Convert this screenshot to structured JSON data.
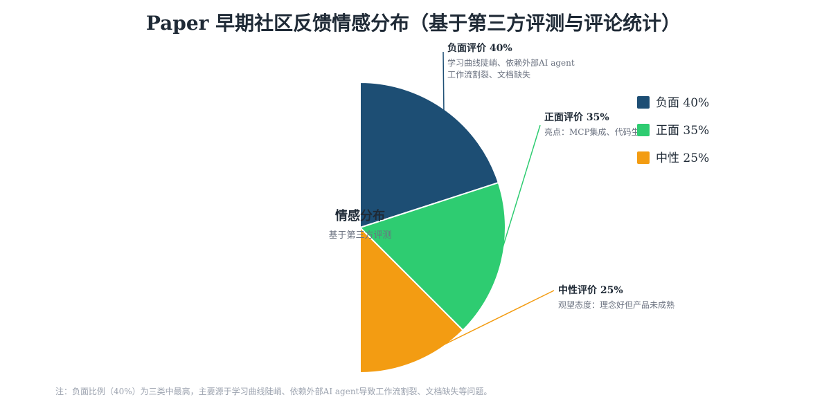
{
  "chart_data": {
    "type": "pie",
    "title": "Paper 早期社区反馈情感分布（基于第三方评测与评论统计）",
    "center_label": {
      "title": "情感分布",
      "subtitle": "基于第三方评测"
    },
    "slices": [
      {
        "name": "负面",
        "value": 40,
        "legend": "负面 40%",
        "callout_title": "负面评价 40%",
        "callout_lines": [
          "学习曲线陡峭、依赖外部AI agent",
          "工作流割裂、文档缺失"
        ],
        "color": "#1d4e74"
      },
      {
        "name": "正面",
        "value": 35,
        "legend": "正面 35%",
        "callout_title": "正面评价 35%",
        "callout_lines": [
          "亮点：MCP集成、代码生成"
        ],
        "color": "#2ecc71"
      },
      {
        "name": "中性",
        "value": 25,
        "legend": "中性 25%",
        "callout_title": "中性评价 25%",
        "callout_lines": [
          "观望态度：理念好但产品未成熟"
        ],
        "color": "#f39c12"
      }
    ],
    "legend_position": "top-right",
    "footnote": "注：负面比例（40%）为三类中最高，主要源于学习曲线陡峭、依赖外部AI agent导致工作流割裂、文档缺失等问题。"
  }
}
